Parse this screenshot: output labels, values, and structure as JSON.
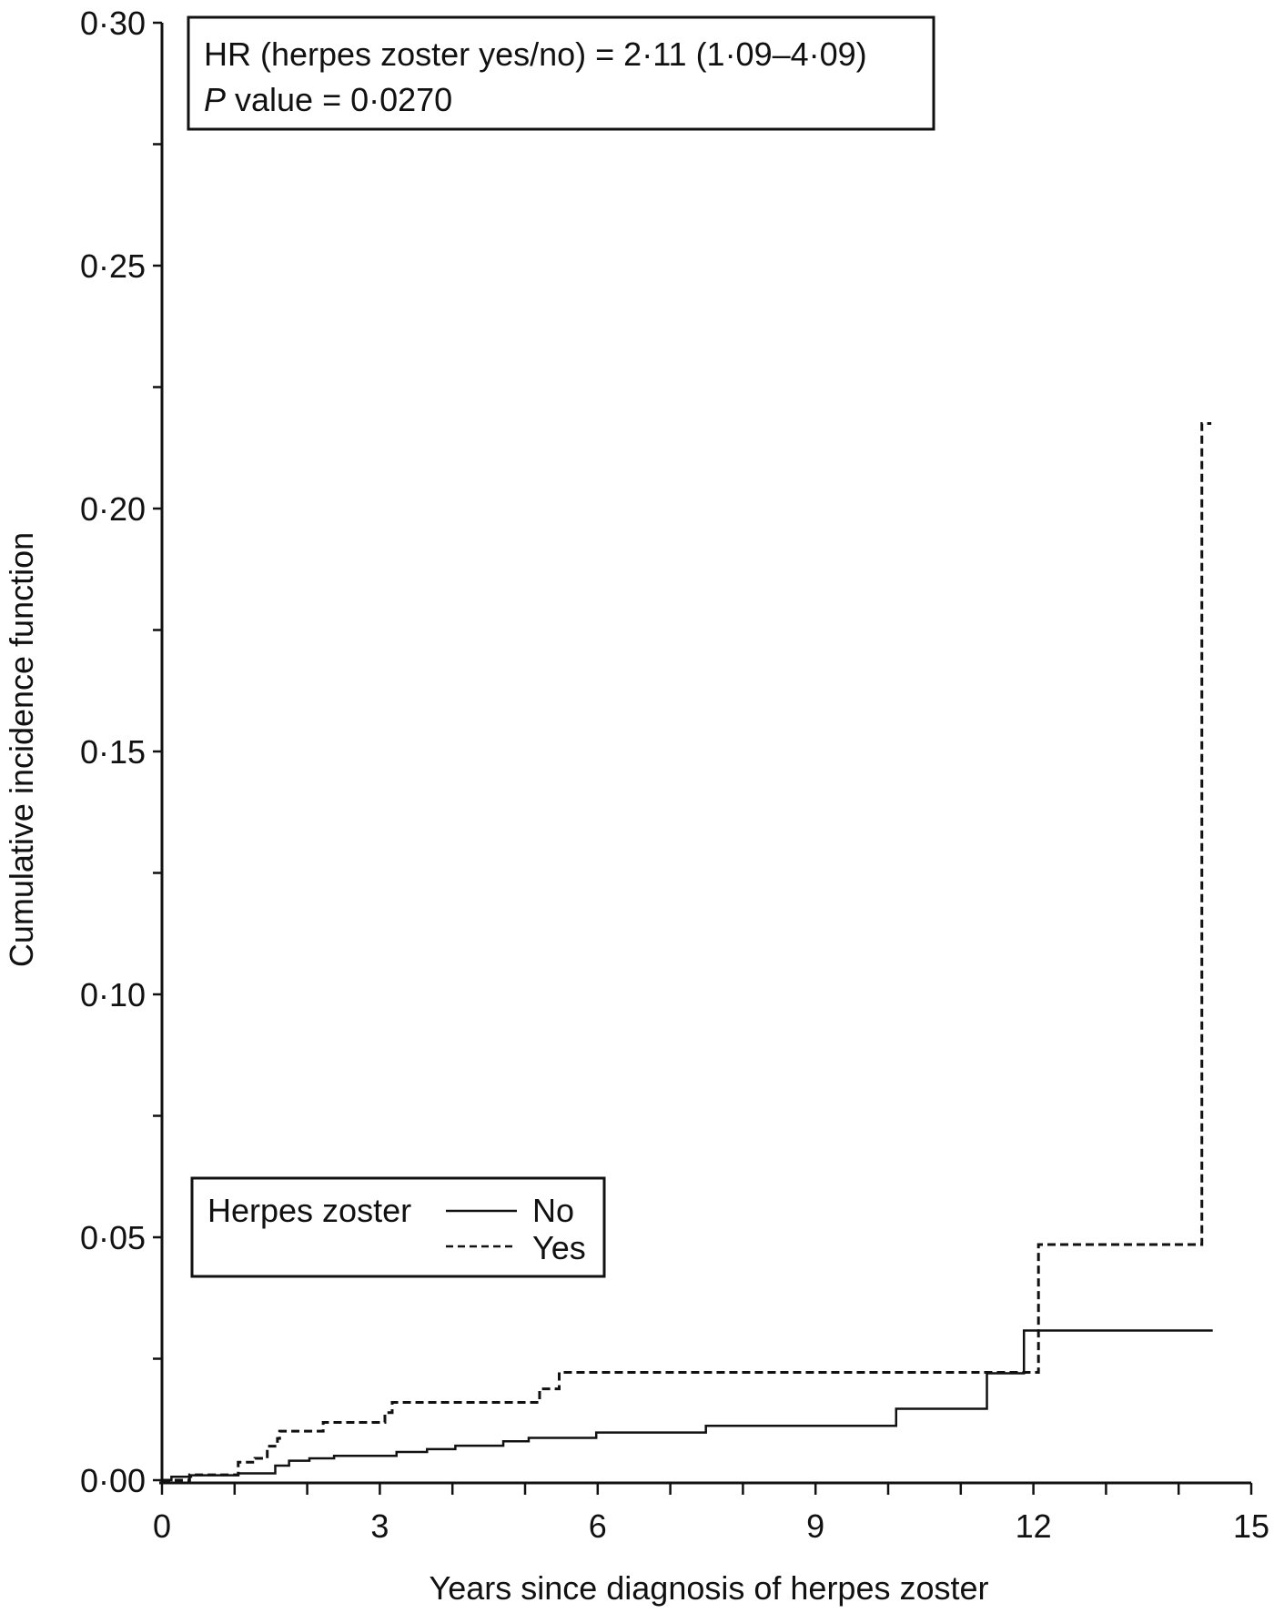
{
  "chart_data": {
    "type": "line",
    "step": true,
    "title": "",
    "xlabel": "Years since diagnosis of herpes zoster",
    "ylabel": "Cumulative incidence function",
    "xlim": [
      0,
      15
    ],
    "ylim": [
      0,
      0.3
    ],
    "xticks": [
      "0",
      "3",
      "6",
      "9",
      "12",
      "15"
    ],
    "xtick_values": [
      0,
      3,
      6,
      9,
      12,
      15
    ],
    "yticks": [
      "0·00",
      "0·05",
      "0·10",
      "0·15",
      "0·20",
      "0·25",
      "0·30"
    ],
    "ytick_values": [
      0,
      0.05,
      0.1,
      0.15,
      0.2,
      0.25,
      0.3
    ],
    "grid": false,
    "annotation": {
      "line1": "HR (herpes zoster yes/no) = 2·11 (1·09–4·09)",
      "line2_italic": "P",
      "line2_rest": " value = 0·0270"
    },
    "legend": {
      "title": "Herpes zoster",
      "placement": "bottom-left",
      "entries": [
        "No",
        "Yes"
      ]
    },
    "series": [
      {
        "name": "No",
        "style": "solid",
        "color": "#111111",
        "x": [
          0,
          0.13,
          0.4,
          1.05,
          1.56,
          1.75,
          2.03,
          2.37,
          3.23,
          3.65,
          4.04,
          4.7,
          5.05,
          5.98,
          7.49,
          10.11,
          11.36,
          11.87,
          14.47
        ],
        "y": [
          0,
          0.0007,
          0.001,
          0.0014,
          0.003,
          0.004,
          0.0045,
          0.005,
          0.0058,
          0.0064,
          0.0071,
          0.008,
          0.0087,
          0.0098,
          0.0112,
          0.0147,
          0.022,
          0.0308,
          0.0308
        ]
      },
      {
        "name": "Yes",
        "style": "dashed",
        "color": "#111111",
        "x": [
          0,
          0.38,
          1.05,
          1.28,
          1.45,
          1.59,
          1.62,
          2.22,
          3.07,
          3.17,
          5.2,
          5.47,
          12.07,
          14.32,
          14.45
        ],
        "y": [
          0,
          0.0011,
          0.0037,
          0.0045,
          0.007,
          0.0086,
          0.0101,
          0.0119,
          0.0139,
          0.016,
          0.0188,
          0.0222,
          0.0485,
          0.2175,
          0.2175
        ]
      }
    ]
  }
}
